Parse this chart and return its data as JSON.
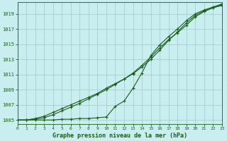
{
  "title": "Graphe pression niveau de la mer (hPa)",
  "bg_color": "#c8eef0",
  "grid_color": "#aacccc",
  "line_color": "#1a5c1a",
  "xlim": [
    0,
    23
  ],
  "ylim": [
    1004.5,
    1020.5
  ],
  "yticks": [
    1005,
    1007,
    1009,
    1011,
    1013,
    1015,
    1017,
    1019
  ],
  "xticks": [
    0,
    1,
    2,
    3,
    4,
    5,
    6,
    7,
    8,
    9,
    10,
    11,
    12,
    13,
    14,
    15,
    16,
    17,
    18,
    19,
    20,
    21,
    22,
    23
  ],
  "line1_x": [
    0,
    1,
    2,
    3,
    4,
    5,
    6,
    7,
    8,
    9,
    10,
    11,
    12,
    13,
    14,
    15,
    16,
    17,
    18,
    19,
    20,
    21,
    22,
    23
  ],
  "line1_y": [
    1005.0,
    1005.0,
    1005.2,
    1005.5,
    1006.0,
    1006.5,
    1007.0,
    1007.5,
    1008.0,
    1008.5,
    1009.2,
    1009.8,
    1010.4,
    1011.1,
    1012.0,
    1013.0,
    1014.2,
    1015.5,
    1016.6,
    1017.8,
    1018.8,
    1019.4,
    1019.8,
    1020.2
  ],
  "line2_x": [
    0,
    1,
    2,
    3,
    4,
    5,
    6,
    7,
    8,
    9,
    10,
    11,
    12,
    13,
    14,
    15,
    16,
    17,
    18,
    19,
    20,
    21,
    22,
    23
  ],
  "line2_y": [
    1005.0,
    1005.0,
    1005.1,
    1005.3,
    1005.7,
    1006.2,
    1006.7,
    1007.2,
    1007.8,
    1008.4,
    1009.0,
    1009.7,
    1010.4,
    1011.2,
    1012.2,
    1013.3,
    1014.5,
    1015.6,
    1016.5,
    1017.5,
    1018.6,
    1019.3,
    1019.8,
    1020.1
  ],
  "line3_x": [
    0,
    1,
    2,
    3,
    4,
    5,
    6,
    7,
    8,
    9,
    10,
    11,
    12,
    13,
    14,
    15,
    16,
    17,
    18,
    19,
    20,
    21,
    22,
    23
  ],
  "line3_y": [
    1005.0,
    1005.0,
    1005.0,
    1005.0,
    1005.0,
    1005.1,
    1005.1,
    1005.2,
    1005.2,
    1005.3,
    1005.4,
    1006.8,
    1007.5,
    1009.2,
    1011.2,
    1013.5,
    1014.9,
    1016.0,
    1017.0,
    1018.1,
    1019.0,
    1019.5,
    1019.9,
    1020.3
  ],
  "figsize": [
    3.2,
    2.0
  ],
  "dpi": 100
}
